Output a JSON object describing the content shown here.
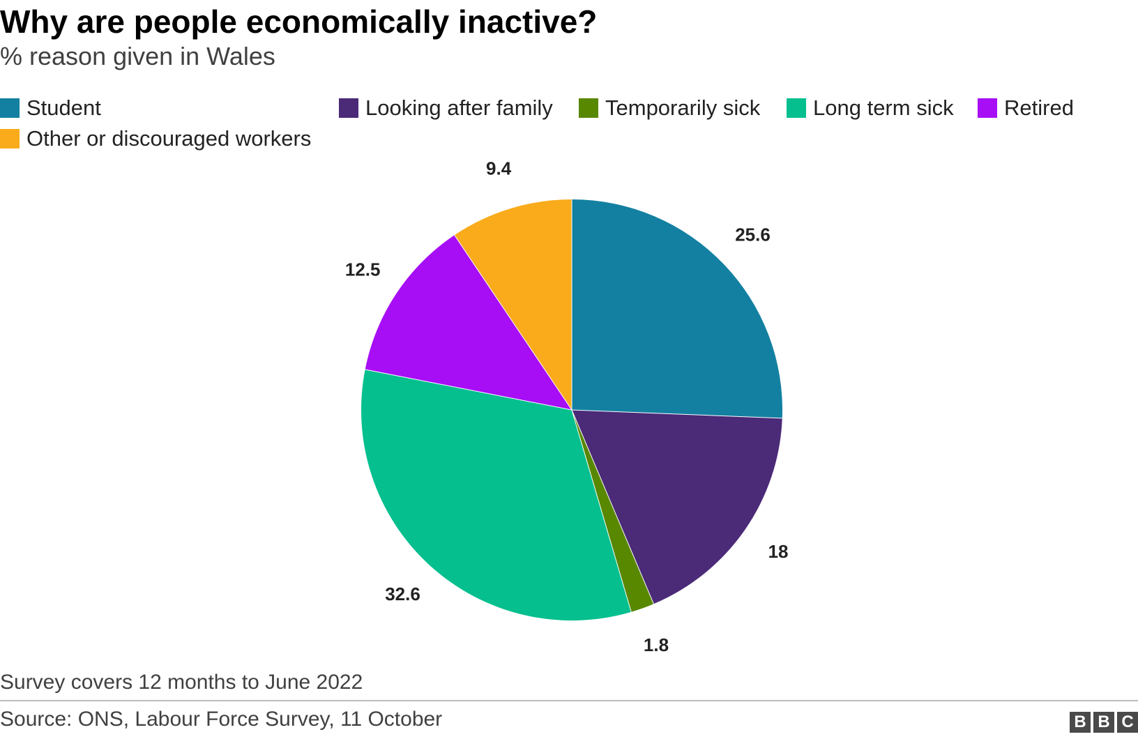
{
  "chart_data": {
    "type": "pie",
    "title": "Why are people economically inactive?",
    "subtitle": "% reason given in Wales",
    "legend_placement": "top",
    "start_angle_deg": 0,
    "direction": "clockwise",
    "slices": [
      {
        "label": "Student",
        "value": 25.6,
        "display": "25.6",
        "color": "#1380a1"
      },
      {
        "label": "Looking after family",
        "value": 18,
        "display": "18",
        "color": "#4b2a78"
      },
      {
        "label": "Temporarily sick",
        "value": 1.8,
        "display": "1.8",
        "color": "#588700"
      },
      {
        "label": "Long term sick",
        "value": 32.6,
        "display": "32.6",
        "color": "#05bf8e"
      },
      {
        "label": "Retired",
        "value": 12.5,
        "display": "12.5",
        "color": "#a70ef5"
      },
      {
        "label": "Other or discouraged workers",
        "value": 9.4,
        "display": "9.4",
        "color": "#f9ab1b"
      }
    ]
  },
  "footer": {
    "note": "Survey covers 12 months to June 2022",
    "source": "Source: ONS, Labour Force Survey, 11 October",
    "logo_letters": [
      "B",
      "B",
      "C"
    ]
  }
}
